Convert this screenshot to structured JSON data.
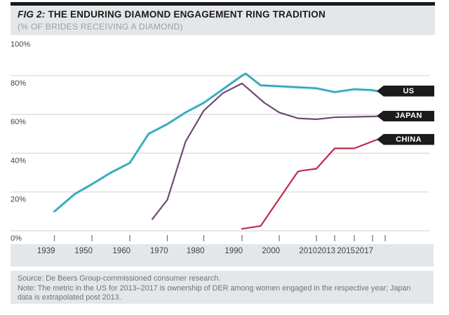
{
  "header": {
    "fig_label": "FIG 2:",
    "title": "THE ENDURING DIAMOND ENGAGEMENT RING TRADITION",
    "subtitle": "(% OF BRIDES RECEIVING A DIAMOND)"
  },
  "chart_data": {
    "type": "line",
    "title": "THE ENDURING DIAMOND ENGAGEMENT RING TRADITION",
    "subtitle_ylabel": "% of brides receiving a diamond",
    "ylim": [
      0,
      100
    ],
    "grid": "horizontal",
    "legend_position": "right-tags",
    "y_ticks": [
      0,
      20,
      40,
      60,
      80,
      100
    ],
    "y_tick_labels": [
      "0%",
      "20%",
      "40%",
      "60%",
      "80%",
      "100%"
    ],
    "x_tick_labels": [
      "1939",
      "1950",
      "1960",
      "1970",
      "1980",
      "1990",
      "2000",
      "2010",
      "2013",
      "2015",
      "2017"
    ],
    "series": [
      {
        "name": "US",
        "color": "#2d9fb0",
        "halo_color": "#b5e6ef",
        "points": [
          [
            1939,
            10
          ],
          [
            1945,
            19
          ],
          [
            1950,
            24
          ],
          [
            1955,
            30
          ],
          [
            1960,
            35
          ],
          [
            1965,
            50
          ],
          [
            1970,
            55
          ],
          [
            1975,
            61
          ],
          [
            1980,
            66
          ],
          [
            1985,
            73
          ],
          [
            1990,
            80
          ],
          [
            1991,
            81
          ],
          [
            1995,
            75
          ],
          [
            2000,
            74.5
          ],
          [
            2005,
            74
          ],
          [
            2010,
            73.5
          ],
          [
            2013,
            71.5
          ],
          [
            2015,
            73
          ],
          [
            2017,
            72.5
          ],
          [
            2018,
            72
          ]
        ]
      },
      {
        "name": "JAPAN",
        "color": "#6f4b72",
        "points": [
          [
            1966,
            6
          ],
          [
            1970,
            16
          ],
          [
            1975,
            46
          ],
          [
            1980,
            62
          ],
          [
            1985,
            71
          ],
          [
            1990,
            76
          ],
          [
            1996,
            66
          ],
          [
            2000,
            61
          ],
          [
            2005,
            58
          ],
          [
            2010,
            57.5
          ],
          [
            2013,
            58.5
          ],
          [
            2018,
            59
          ]
        ]
      },
      {
        "name": "CHINA",
        "color": "#be2b4c",
        "points": [
          [
            1990,
            1
          ],
          [
            1995,
            2.5
          ],
          [
            2005,
            30.5
          ],
          [
            2006,
            31
          ],
          [
            2010,
            32
          ],
          [
            2013,
            42.5
          ],
          [
            2015,
            42.5
          ],
          [
            2018,
            47
          ]
        ]
      }
    ]
  },
  "legend": {
    "tag_bg": "#1b1b1b",
    "tag_text_color": "#ffffff"
  },
  "ui_colors": {
    "accent_bar": "#1b1b1b",
    "panel_bg": "#e4e7ea",
    "gridline": "#d6d9dc",
    "axis_text": "#3e4347",
    "footer_text": "#6e7377"
  },
  "footer": {
    "source": "Source: De Beers Group-commissioned consumer research.",
    "note": "Note: The metric in the US for 2013–2017 is ownership of DER among women engaged in the respective year; Japan data is extrapolated post 2013."
  }
}
